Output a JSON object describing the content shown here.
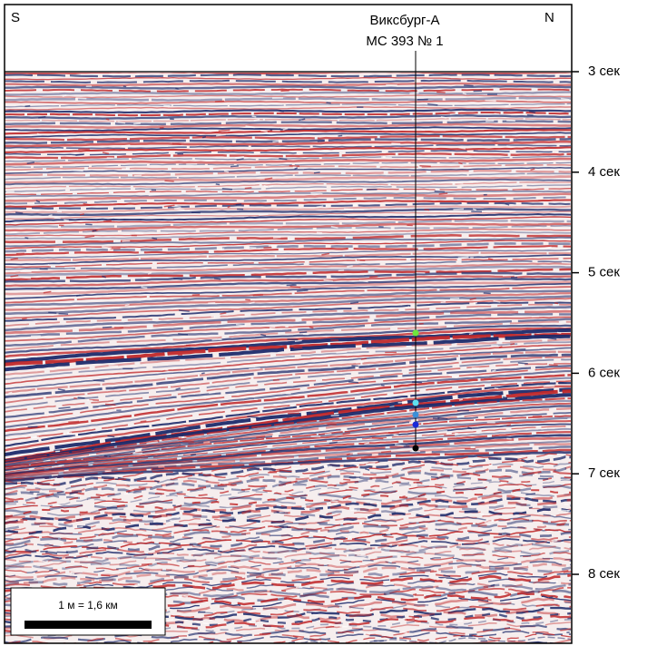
{
  "header": {
    "left": "S",
    "right": "N"
  },
  "well": {
    "name": "Виксбург-А",
    "id": "МС 393 № 1"
  },
  "time_axis": {
    "labels": [
      "3 сек",
      "4 сек",
      "5 сек",
      "6 сек",
      "7 сек",
      "8 сек"
    ]
  },
  "scale_bar": {
    "label": "1 м = 1,6 км"
  }
}
